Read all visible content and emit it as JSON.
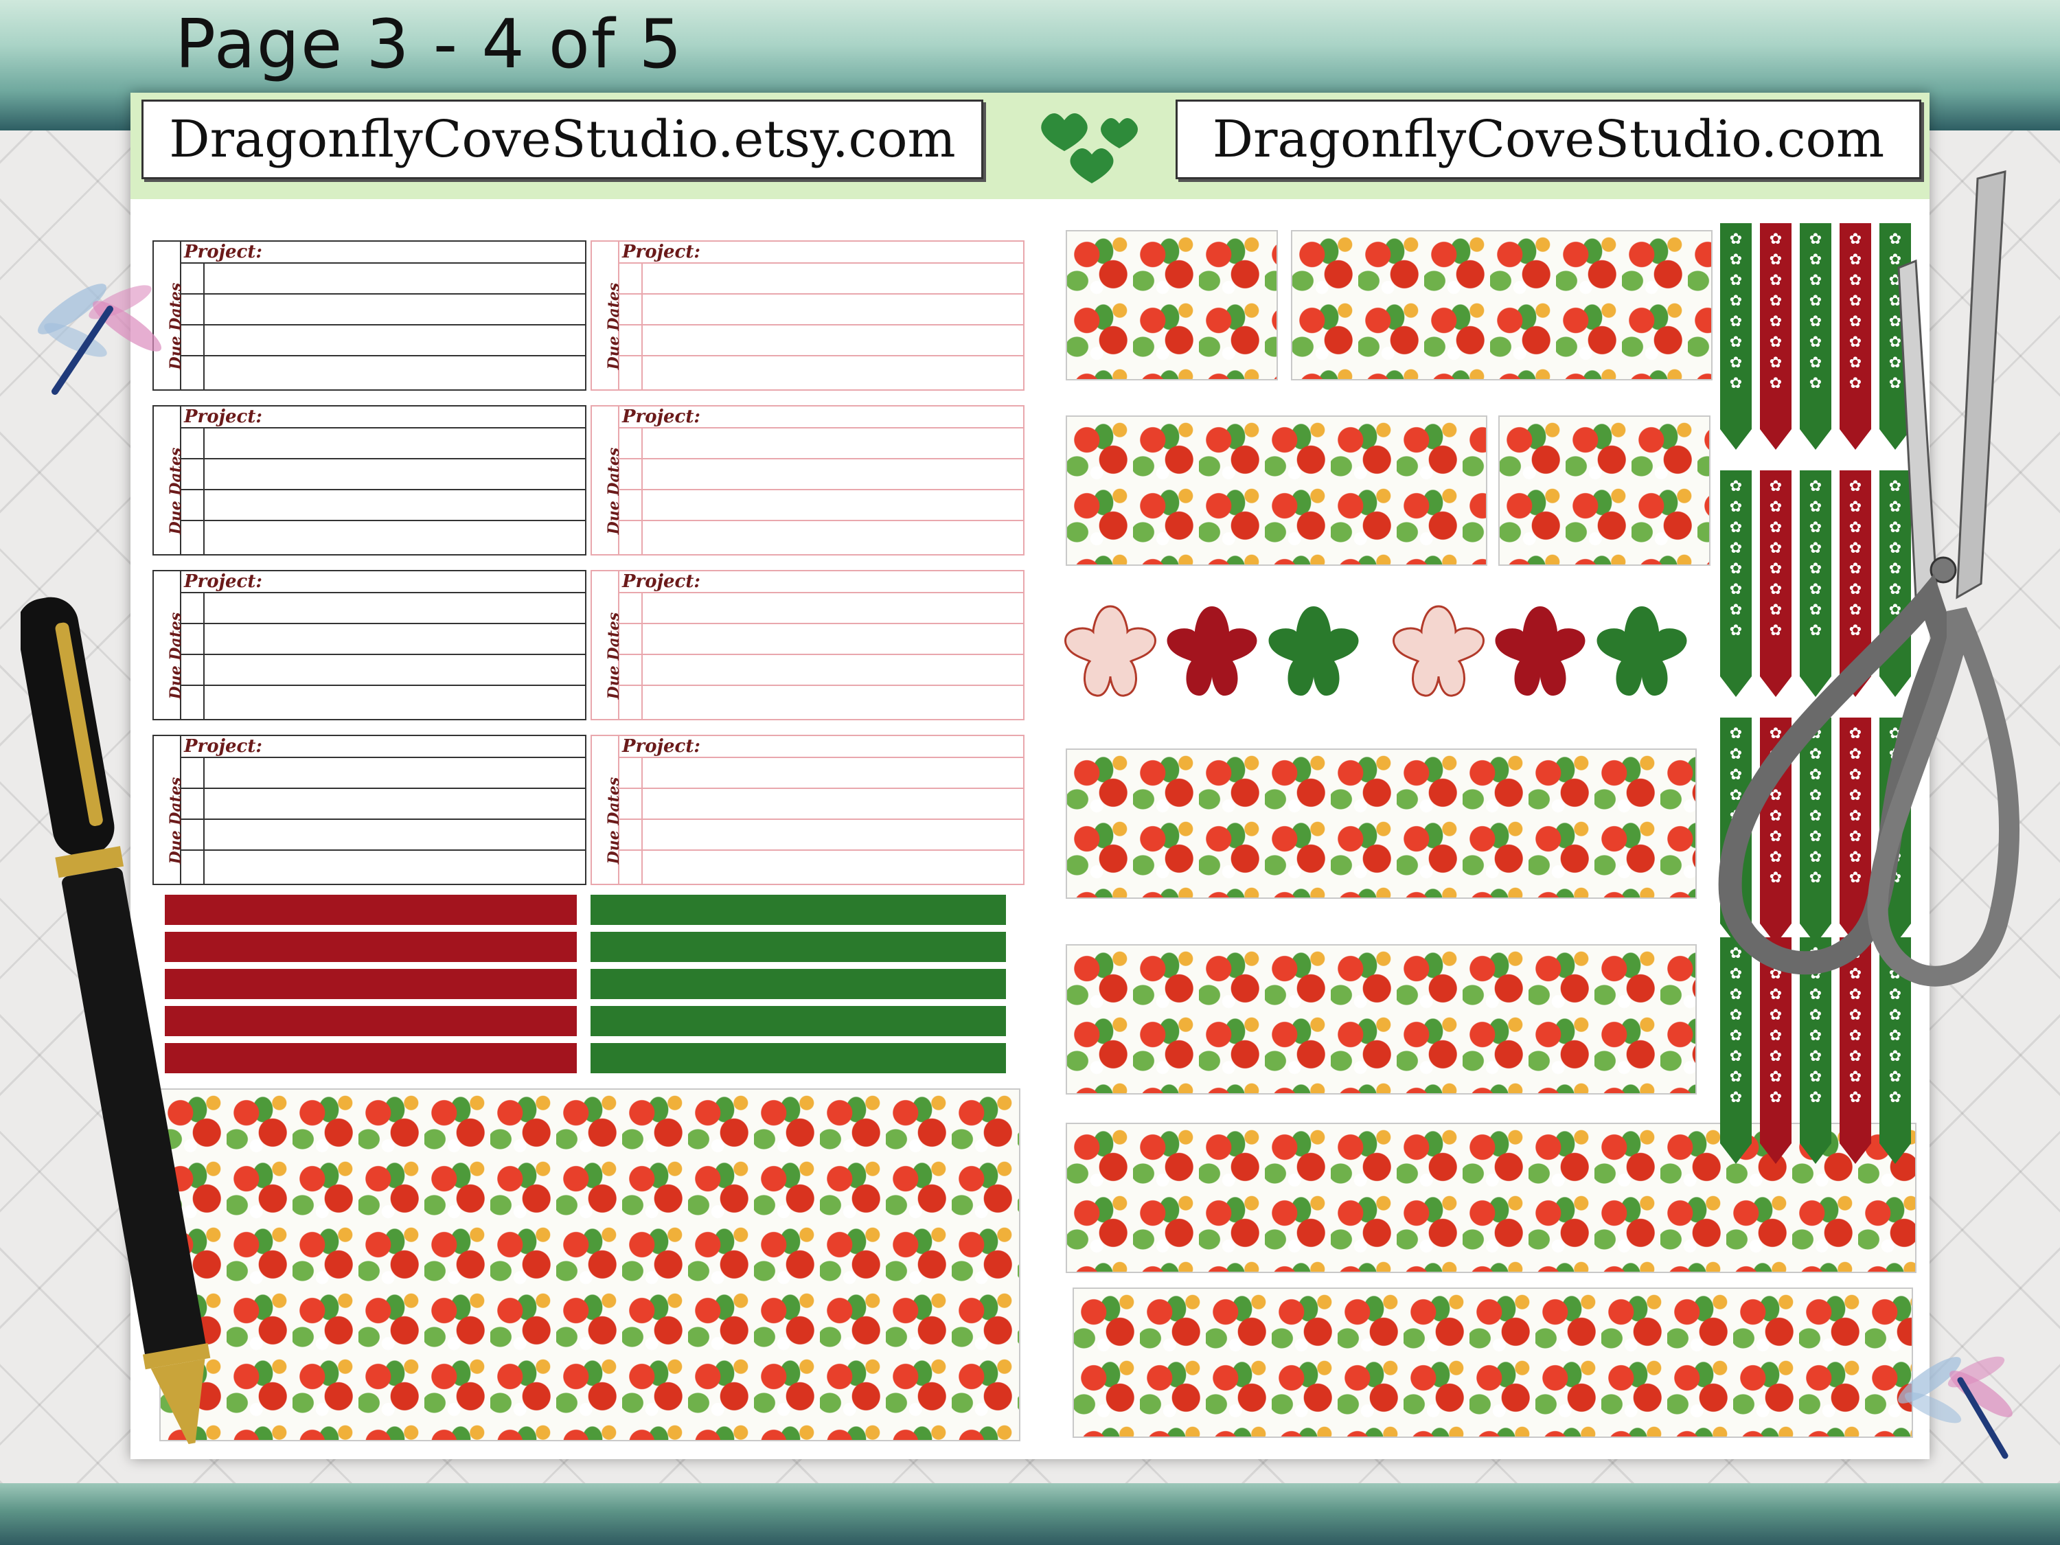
{
  "page_label": "Page 3 - 4 of 5",
  "header": {
    "left_url": "DragonflyCoveStudio.etsy.com",
    "right_url": "DragonflyCoveStudio.com"
  },
  "project_box": {
    "title": "Project:",
    "side_label": "Due Dates"
  },
  "colors": {
    "accent_red": "#a3141e",
    "accent_green": "#2a7a2c",
    "header_green": "#d8efc4",
    "box_pink": "#e9a7ad"
  },
  "icons": [
    "dragonfly-icon",
    "heart-icon",
    "pen-icon",
    "scissors-icon",
    "flower-sticker-icon",
    "flag-sticker-icon"
  ]
}
